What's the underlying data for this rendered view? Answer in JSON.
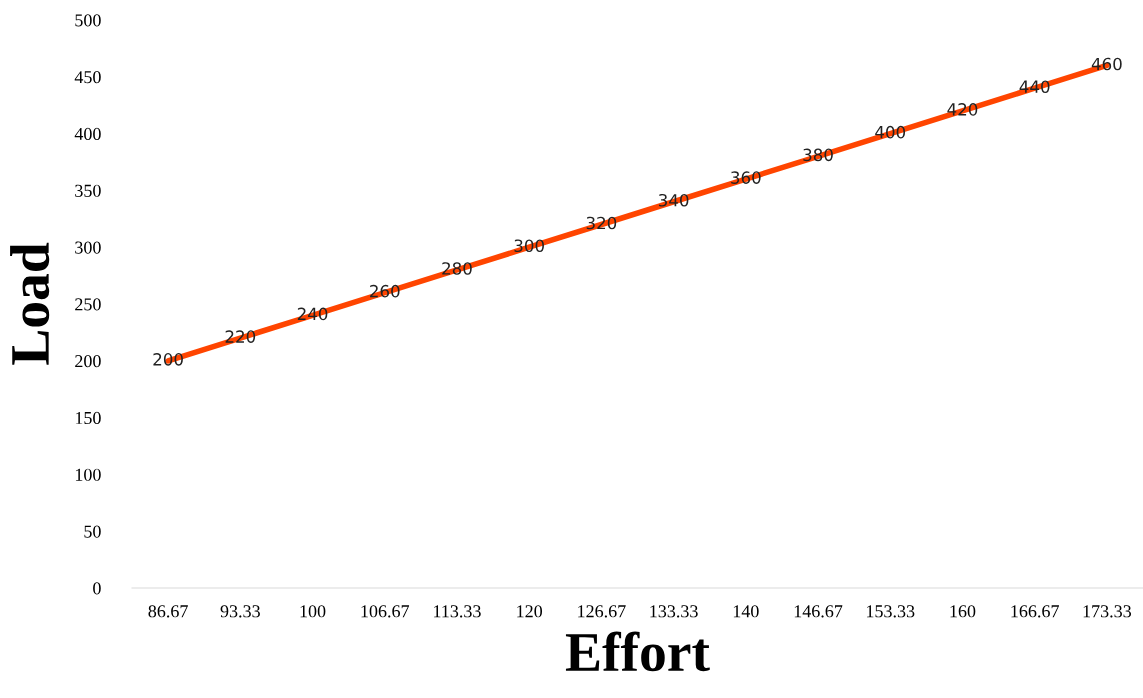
{
  "chart_data": {
    "type": "line",
    "xlabel": "Effort",
    "ylabel": "Load",
    "categories": [
      "86.67",
      "93.33",
      "100",
      "106.67",
      "113.33",
      "120",
      "126.67",
      "133.33",
      "140",
      "146.67",
      "153.33",
      "160",
      "166.67",
      "173.33"
    ],
    "series": [
      {
        "color": "#ff4500",
        "values": [
          200,
          220,
          240,
          260,
          280,
          300,
          320,
          340,
          360,
          380,
          400,
          420,
          440,
          460
        ]
      }
    ],
    "ylim": [
      0,
      500
    ],
    "yticks": [
      0,
      50,
      100,
      150,
      200,
      250,
      300,
      350,
      400,
      450,
      500
    ],
    "data_labels": true,
    "grid": false,
    "marker": "none",
    "line_style": "solid"
  }
}
